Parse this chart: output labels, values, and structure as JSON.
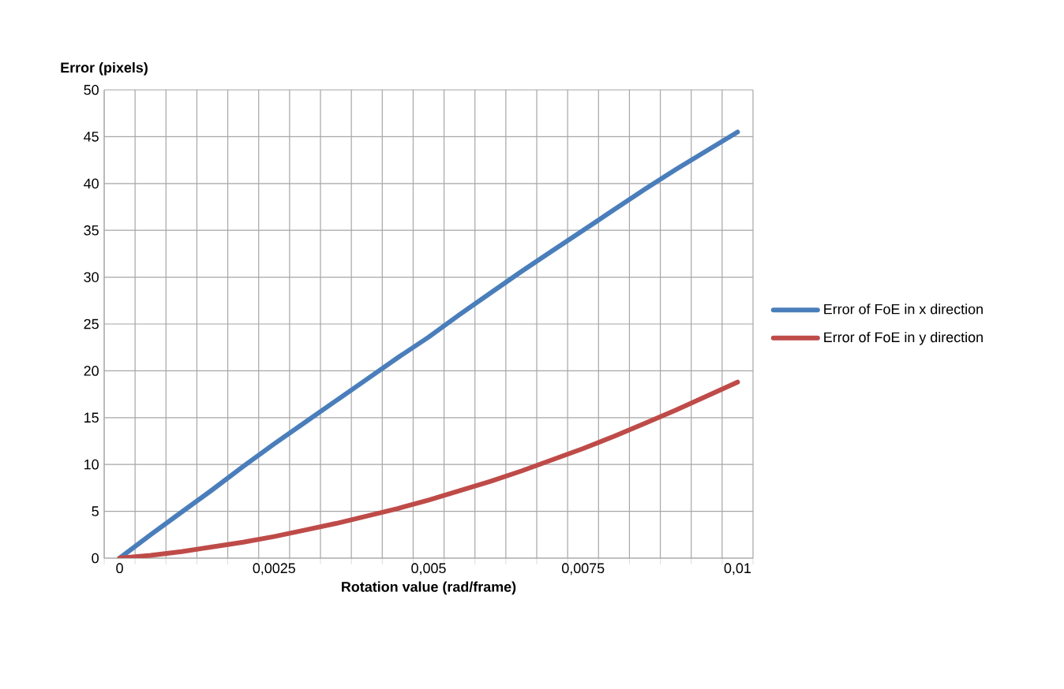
{
  "chart_data": {
    "type": "line",
    "ylabel": "Error (pixels)",
    "xlabel": "Rotation value (rad/frame)",
    "categories": [
      "0",
      null,
      null,
      null,
      null,
      "0,0025",
      null,
      null,
      null,
      null,
      "0,005",
      null,
      null,
      null,
      null,
      "0,0075",
      null,
      null,
      null,
      null,
      "0,01"
    ],
    "series": [
      {
        "name": "Error of FoE in x direction",
        "color": "#4a7ebb",
        "values": [
          0,
          2.5,
          4.9,
          7.3,
          9.8,
          12.2,
          14.5,
          16.8,
          19.1,
          21.4,
          23.6,
          26.0,
          28.3,
          30.6,
          32.8,
          35.0,
          37.2,
          39.4,
          41.5,
          43.5,
          45.5
        ]
      },
      {
        "name": "Error of FoE in y direction",
        "color": "#be4b48",
        "values": [
          0,
          0.3,
          0.7,
          1.2,
          1.7,
          2.3,
          3.0,
          3.7,
          4.5,
          5.3,
          6.2,
          7.2,
          8.2,
          9.3,
          10.5,
          11.7,
          13.0,
          14.4,
          15.8,
          17.3,
          18.8
        ]
      }
    ],
    "ylim": [
      0,
      50
    ],
    "yticks": [
      0,
      5,
      10,
      15,
      20,
      25,
      30,
      35,
      40,
      45,
      50
    ],
    "grid": true,
    "legend": "right",
    "marker": "none",
    "line_style": "solid"
  }
}
